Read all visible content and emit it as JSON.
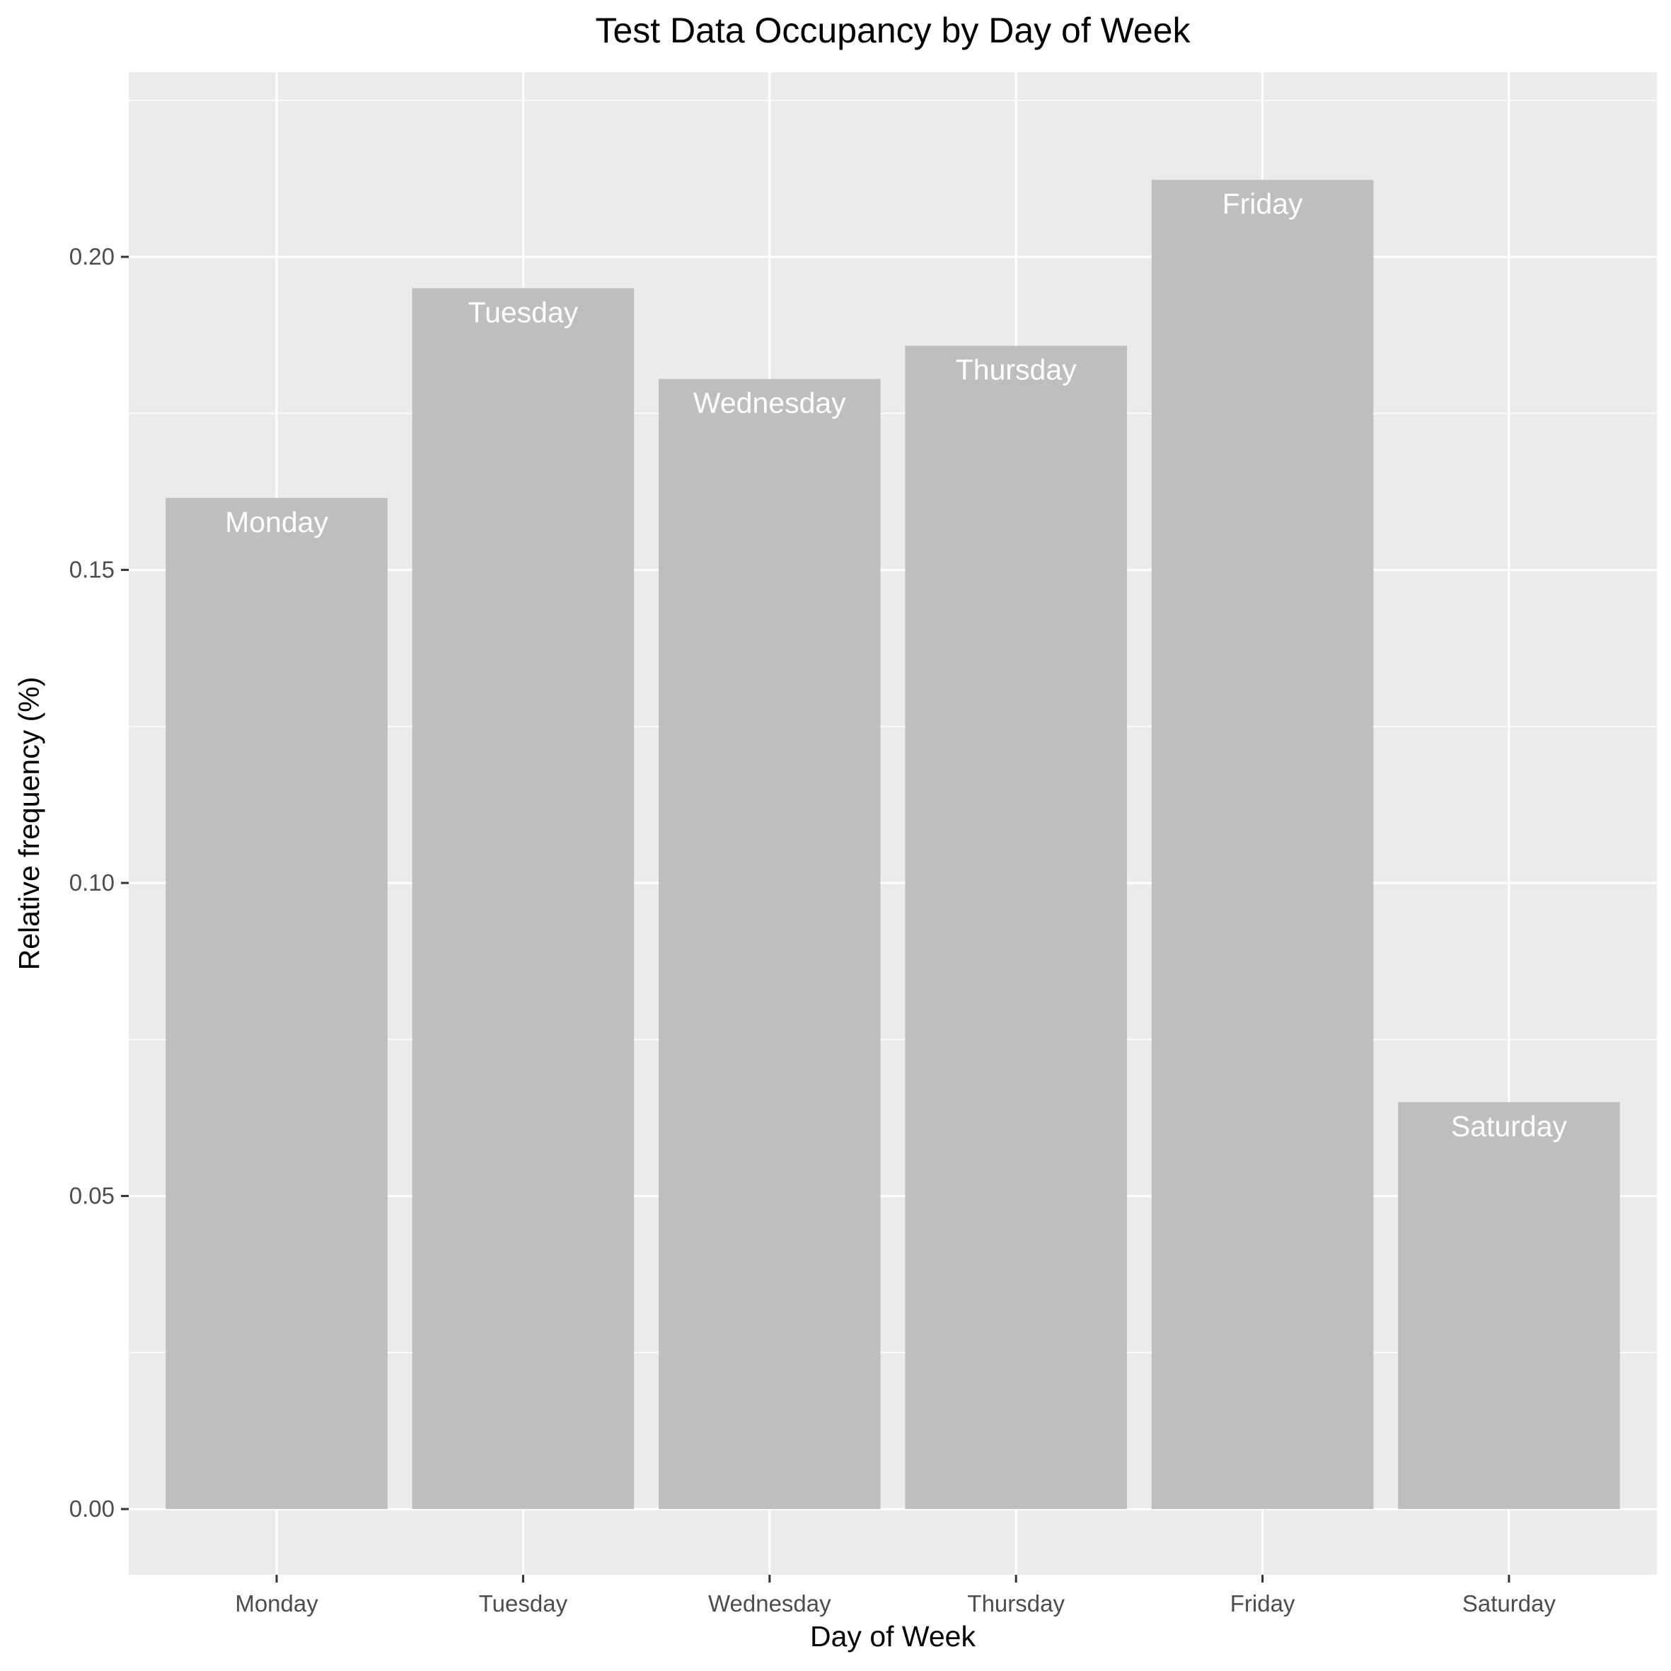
{
  "chart_data": {
    "type": "bar",
    "title": "Test Data Occupancy by Day of Week",
    "xlabel": "Day of Week",
    "ylabel": "Relative frequency (%)",
    "categories": [
      "Monday",
      "Tuesday",
      "Wednesday",
      "Thursday",
      "Friday",
      "Saturday"
    ],
    "values": [
      0.1615,
      0.195,
      0.1805,
      0.1858,
      0.2123,
      0.065
    ],
    "bar_labels": [
      "Monday",
      "Tuesday",
      "Wednesday",
      "Thursday",
      "Friday",
      "Saturday"
    ],
    "ylim": [
      -0.0105,
      0.2295
    ],
    "yticks": [
      0.0,
      0.05,
      0.1,
      0.15,
      0.2
    ],
    "ytick_labels": [
      "0.00",
      "0.05",
      "0.10",
      "0.15",
      "0.20"
    ],
    "grid": true,
    "legend": "none",
    "colors": {
      "panel_background": "#ebebeb",
      "grid_line": "#ffffff",
      "bar_fill": "#bebebe",
      "bar_label": "#ffffff",
      "tick_label": "#4d4d4d",
      "tick_mark": "#333333",
      "text": "#000000"
    }
  }
}
